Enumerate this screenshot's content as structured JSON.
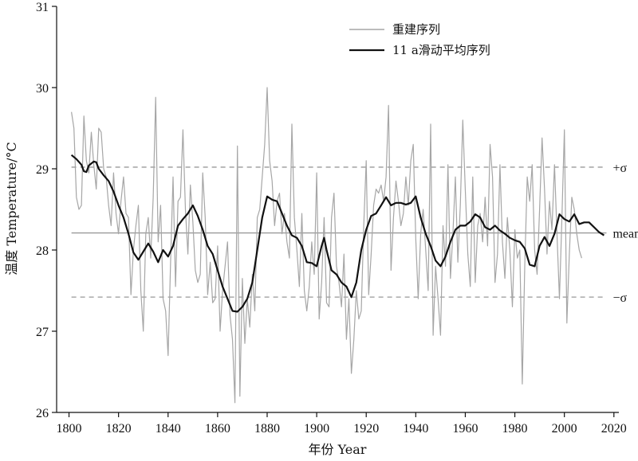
{
  "chart_data": {
    "type": "line",
    "title": "",
    "xlabel": "年份 Year",
    "ylabel": "温度 Temperature/°C",
    "xlim": [
      1795,
      2022
    ],
    "ylim": [
      26,
      31
    ],
    "x_ticks": [
      1800,
      1820,
      1840,
      1860,
      1880,
      1900,
      1920,
      1940,
      1960,
      1980,
      2000,
      2020
    ],
    "y_ticks": [
      26,
      27,
      28,
      29,
      30,
      31
    ],
    "legend_position": "top-right",
    "grid": false,
    "reference_lines": [
      {
        "label": "+σ",
        "value": 29.02,
        "style": "dashed",
        "color": "#999999"
      },
      {
        "label": "mean",
        "value": 28.21,
        "style": "solid",
        "color": "#999999"
      },
      {
        "label": "−σ",
        "value": 27.42,
        "style": "dashed",
        "color": "#999999"
      }
    ],
    "series": [
      {
        "name": "重建序列",
        "color": "#a6a6a6",
        "x_start": 1801,
        "x_step": 1,
        "values": [
          29.7,
          29.5,
          28.65,
          28.5,
          28.55,
          29.65,
          29.1,
          28.95,
          29.45,
          29.05,
          28.75,
          29.5,
          29.45,
          29.0,
          28.9,
          28.55,
          28.3,
          28.95,
          28.45,
          28.2,
          28.6,
          28.9,
          28.45,
          28.4,
          27.45,
          28.0,
          28.3,
          28.55,
          27.5,
          27.0,
          28.2,
          28.4,
          27.9,
          28.65,
          29.88,
          28.1,
          28.55,
          27.4,
          27.25,
          26.7,
          27.85,
          28.9,
          27.55,
          28.6,
          28.65,
          29.48,
          28.5,
          27.95,
          28.8,
          28.35,
          27.75,
          27.6,
          27.7,
          28.95,
          28.4,
          27.45,
          27.85,
          27.35,
          27.4,
          28.05,
          27.0,
          27.5,
          27.8,
          28.1,
          27.2,
          26.9,
          26.12,
          29.28,
          26.2,
          27.65,
          26.85,
          27.4,
          27.05,
          27.7,
          27.25,
          28.4,
          28.5,
          28.9,
          29.3,
          30.0,
          29.1,
          28.85,
          28.3,
          28.6,
          28.7,
          28.2,
          28.45,
          28.1,
          27.9,
          29.55,
          28.4,
          28.0,
          27.55,
          28.45,
          27.5,
          27.25,
          27.55,
          28.1,
          27.7,
          28.95,
          27.15,
          27.6,
          28.4,
          27.35,
          27.3,
          28.4,
          28.7,
          27.8,
          27.6,
          27.3,
          27.95,
          26.9,
          27.4,
          26.48,
          26.9,
          27.5,
          27.15,
          27.25,
          28.3,
          29.1,
          27.45,
          27.95,
          28.55,
          28.75,
          28.7,
          28.8,
          28.6,
          28.9,
          29.78,
          27.75,
          28.4,
          28.85,
          28.6,
          28.3,
          28.45,
          28.9,
          28.55,
          29.1,
          29.3,
          28.15,
          27.4,
          28.2,
          28.5,
          28.0,
          27.5,
          29.55,
          26.95,
          27.8,
          27.4,
          26.95,
          28.3,
          27.8,
          29.05,
          27.65,
          28.2,
          28.9,
          27.85,
          28.55,
          29.6,
          28.75,
          27.95,
          27.55,
          28.9,
          27.6,
          28.3,
          28.45,
          28.1,
          28.65,
          28.05,
          29.3,
          28.9,
          27.6,
          27.95,
          29.05,
          28.1,
          27.65,
          28.4,
          28.0,
          27.3,
          28.25,
          27.9,
          28.0,
          26.35,
          27.8,
          28.9,
          28.6,
          29.05,
          28.0,
          27.7,
          28.5,
          29.38,
          28.75,
          27.95,
          28.6,
          28.25,
          29.05,
          28.2,
          27.4,
          28.4,
          29.48,
          27.1,
          27.95,
          28.65,
          28.5,
          28.2,
          28.0,
          27.9
        ]
      },
      {
        "name": "11 a滑动平均序列",
        "color": "#111111",
        "points": [
          [
            1801,
            29.17
          ],
          [
            1803,
            29.12
          ],
          [
            1805,
            29.05
          ],
          [
            1806,
            28.97
          ],
          [
            1807,
            28.96
          ],
          [
            1808,
            29.04
          ],
          [
            1810,
            29.09
          ],
          [
            1811,
            29.08
          ],
          [
            1812,
            29.0
          ],
          [
            1814,
            28.92
          ],
          [
            1816,
            28.85
          ],
          [
            1818,
            28.72
          ],
          [
            1820,
            28.55
          ],
          [
            1822,
            28.4
          ],
          [
            1824,
            28.2
          ],
          [
            1826,
            27.97
          ],
          [
            1828,
            27.88
          ],
          [
            1830,
            27.98
          ],
          [
            1832,
            28.08
          ],
          [
            1834,
            27.98
          ],
          [
            1836,
            27.85
          ],
          [
            1838,
            28.0
          ],
          [
            1840,
            27.92
          ],
          [
            1842,
            28.05
          ],
          [
            1844,
            28.3
          ],
          [
            1846,
            28.38
          ],
          [
            1848,
            28.45
          ],
          [
            1850,
            28.55
          ],
          [
            1852,
            28.42
          ],
          [
            1854,
            28.25
          ],
          [
            1856,
            28.05
          ],
          [
            1858,
            27.95
          ],
          [
            1860,
            27.75
          ],
          [
            1862,
            27.55
          ],
          [
            1864,
            27.4
          ],
          [
            1866,
            27.25
          ],
          [
            1868,
            27.24
          ],
          [
            1870,
            27.3
          ],
          [
            1872,
            27.4
          ],
          [
            1874,
            27.6
          ],
          [
            1876,
            28.0
          ],
          [
            1878,
            28.4
          ],
          [
            1880,
            28.66
          ],
          [
            1882,
            28.62
          ],
          [
            1884,
            28.6
          ],
          [
            1886,
            28.45
          ],
          [
            1888,
            28.3
          ],
          [
            1890,
            28.18
          ],
          [
            1892,
            28.15
          ],
          [
            1894,
            28.05
          ],
          [
            1896,
            27.85
          ],
          [
            1898,
            27.84
          ],
          [
            1900,
            27.8
          ],
          [
            1902,
            28.05
          ],
          [
            1903,
            28.15
          ],
          [
            1904,
            28.0
          ],
          [
            1906,
            27.75
          ],
          [
            1908,
            27.7
          ],
          [
            1910,
            27.6
          ],
          [
            1912,
            27.55
          ],
          [
            1914,
            27.42
          ],
          [
            1916,
            27.6
          ],
          [
            1918,
            28.0
          ],
          [
            1920,
            28.25
          ],
          [
            1922,
            28.42
          ],
          [
            1924,
            28.45
          ],
          [
            1926,
            28.55
          ],
          [
            1928,
            28.65
          ],
          [
            1930,
            28.55
          ],
          [
            1932,
            28.58
          ],
          [
            1934,
            28.58
          ],
          [
            1936,
            28.56
          ],
          [
            1938,
            28.58
          ],
          [
            1940,
            28.66
          ],
          [
            1942,
            28.4
          ],
          [
            1944,
            28.2
          ],
          [
            1946,
            28.05
          ],
          [
            1948,
            27.87
          ],
          [
            1950,
            27.8
          ],
          [
            1952,
            27.92
          ],
          [
            1954,
            28.1
          ],
          [
            1956,
            28.25
          ],
          [
            1958,
            28.3
          ],
          [
            1960,
            28.3
          ],
          [
            1962,
            28.35
          ],
          [
            1964,
            28.44
          ],
          [
            1966,
            28.4
          ],
          [
            1968,
            28.28
          ],
          [
            1970,
            28.25
          ],
          [
            1972,
            28.3
          ],
          [
            1974,
            28.24
          ],
          [
            1976,
            28.2
          ],
          [
            1978,
            28.15
          ],
          [
            1980,
            28.12
          ],
          [
            1982,
            28.1
          ],
          [
            1984,
            28.02
          ],
          [
            1986,
            27.82
          ],
          [
            1988,
            27.8
          ],
          [
            1990,
            28.05
          ],
          [
            1992,
            28.16
          ],
          [
            1994,
            28.05
          ],
          [
            1996,
            28.2
          ],
          [
            1998,
            28.44
          ],
          [
            2000,
            28.38
          ],
          [
            2002,
            28.35
          ],
          [
            2004,
            28.44
          ],
          [
            2006,
            28.32
          ],
          [
            2008,
            28.34
          ],
          [
            2010,
            28.34
          ],
          [
            2012,
            28.28
          ],
          [
            2014,
            28.22
          ],
          [
            2016,
            28.18
          ]
        ]
      }
    ]
  }
}
